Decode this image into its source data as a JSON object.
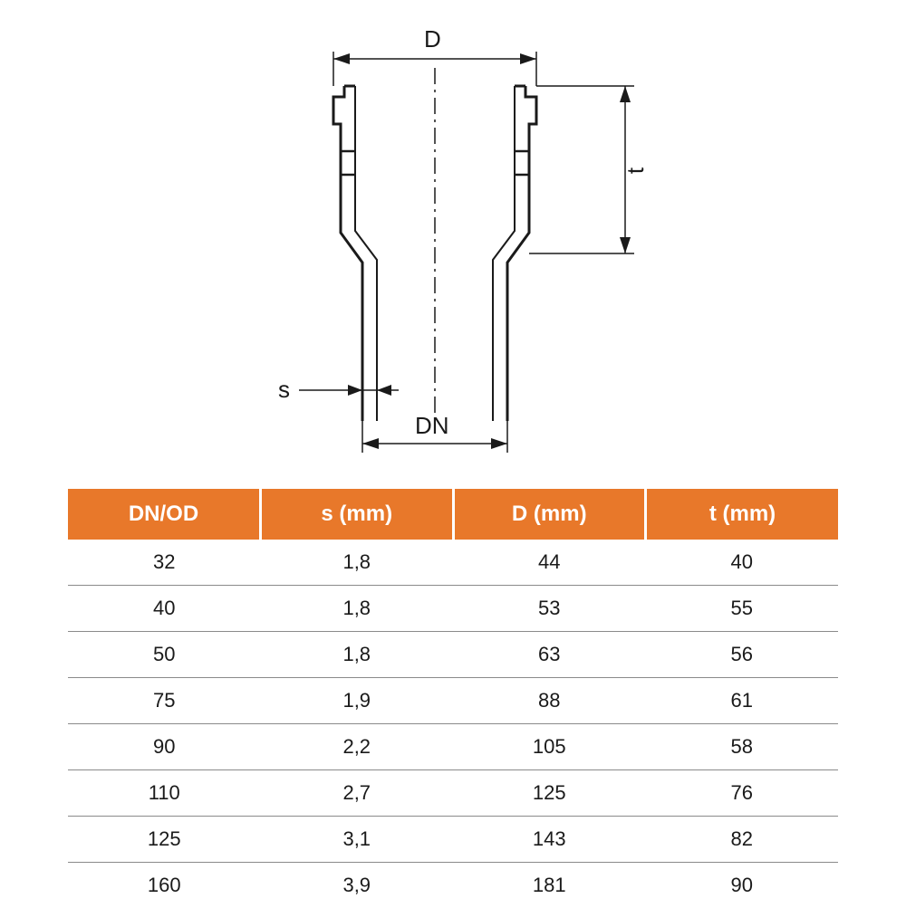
{
  "diagram": {
    "labels": {
      "D": "D",
      "t": "t",
      "s": "s",
      "DN": "DN"
    },
    "stroke_color": "#1a1a1a",
    "centerline_color": "#1a1a1a"
  },
  "table": {
    "header_bg": "#e8782a",
    "header_fg": "#ffffff",
    "row_border_color": "#8a8a8a",
    "text_color": "#1a1a1a",
    "columns": [
      "DN/OD",
      "s (mm)",
      "D (mm)",
      "t (mm)"
    ],
    "col_widths_pct": [
      25,
      25,
      25,
      25
    ],
    "rows": [
      [
        "32",
        "1,8",
        "44",
        "40"
      ],
      [
        "40",
        "1,8",
        "53",
        "55"
      ],
      [
        "50",
        "1,8",
        "63",
        "56"
      ],
      [
        "75",
        "1,9",
        "88",
        "61"
      ],
      [
        "90",
        "2,2",
        "105",
        "58"
      ],
      [
        "110",
        "2,7",
        "125",
        "76"
      ],
      [
        "125",
        "3,1",
        "143",
        "82"
      ],
      [
        "160",
        "3,9",
        "181",
        "90"
      ]
    ]
  }
}
